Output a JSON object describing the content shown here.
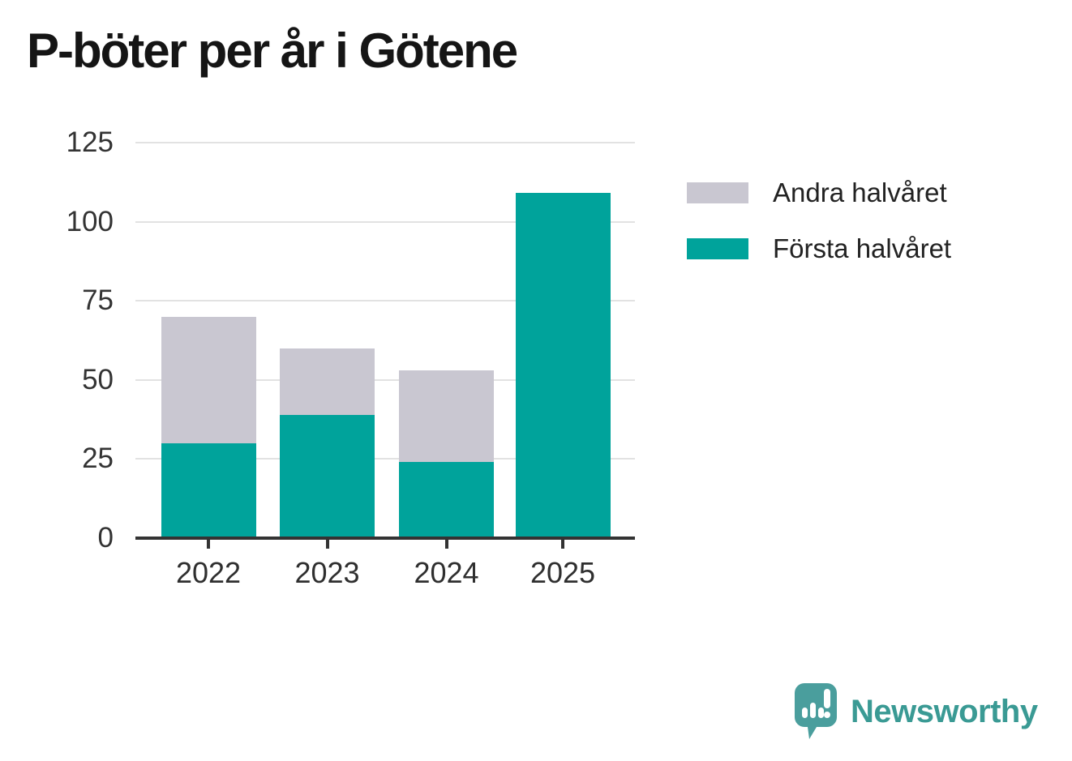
{
  "header": {
    "title": "P-böter per år i Götene"
  },
  "chart_data": {
    "type": "bar",
    "stacked": true,
    "title": "P-böter per år i Götene",
    "categories": [
      "2022",
      "2023",
      "2024",
      "2025"
    ],
    "series": [
      {
        "name": "Andra halvåret",
        "color": "#c9c7d1",
        "values": [
          40,
          21,
          29,
          0
        ]
      },
      {
        "name": "Första halvåret",
        "color": "#00a39b",
        "values": [
          30,
          39,
          24,
          109
        ]
      }
    ],
    "totals": [
      70,
      60,
      53,
      109
    ],
    "xlabel": "",
    "ylabel": "",
    "ylim": [
      0,
      125
    ],
    "yticks": [
      0,
      25,
      50,
      75,
      100,
      125
    ],
    "grid": true,
    "legend_position": "right",
    "axis_color": "#333333",
    "grid_color": "#e2e2e2"
  },
  "branding": {
    "logo_text": "Newsworthy",
    "logo_icon": "newsworthy-speech-bubble-bar-chart-icon",
    "logo_color": "#4a9e9d",
    "text_color": "#3a9a94"
  }
}
